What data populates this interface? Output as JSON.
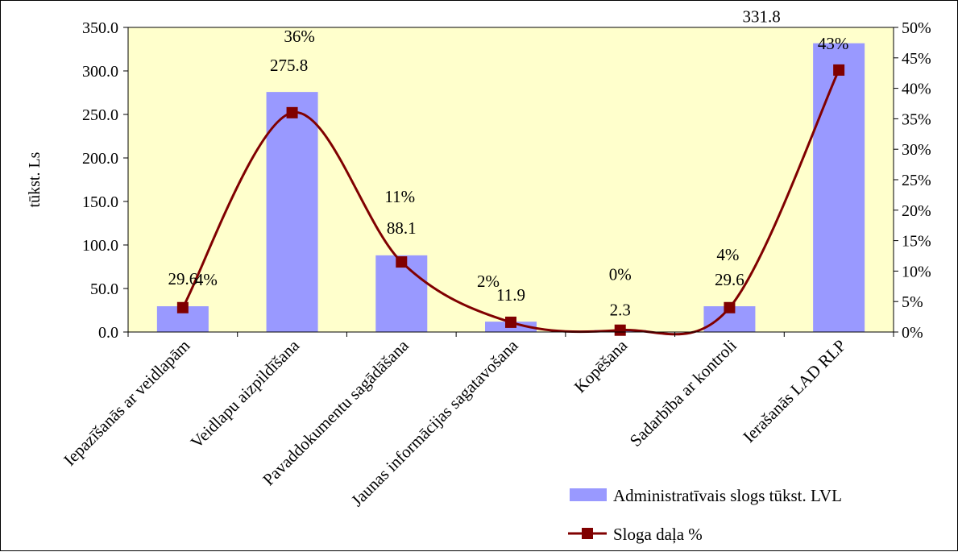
{
  "chart_data": {
    "type": "bar",
    "categories": [
      "Iepazīšanās ar veidlapām",
      "Veidlapu aizpildīšana",
      "Pavaddokumentu sagādāšana",
      "Jaunas informācijas sagatavošana",
      "Kopēšana",
      "Sadarbība ar kontroli",
      "Ierašanās LAD RLP"
    ],
    "series": [
      {
        "name": "Administratīvais slogs tūkst. LVL",
        "type": "bar",
        "axis": "left",
        "values": [
          29.6,
          275.8,
          88.1,
          11.9,
          2.3,
          29.6,
          331.8
        ],
        "labels": [
          "29.6",
          "275.8",
          "88.1",
          "11.9",
          "2.3",
          "29.6",
          "331.8"
        ],
        "color": "#9999ff"
      },
      {
        "name": "Sloga daļa %",
        "type": "line",
        "axis": "right",
        "values": [
          4,
          36,
          11.5,
          1.6,
          0.3,
          4,
          43
        ],
        "labels": [
          "4%",
          "36%",
          "11%",
          "2%",
          "0%",
          "4%",
          "43%"
        ],
        "color": "#800000"
      }
    ],
    "ylabel": "tūkst. Ls",
    "ylim": [
      0,
      350
    ],
    "y_ticks": [
      "0.0",
      "50.0",
      "100.0",
      "150.0",
      "200.0",
      "250.0",
      "300.0",
      "350.0"
    ],
    "y2lim": [
      0,
      50
    ],
    "y2_ticks": [
      "0%",
      "5%",
      "10%",
      "15%",
      "20%",
      "25%",
      "30%",
      "35%",
      "40%",
      "45%",
      "50%"
    ],
    "plot_background": "#ffffcc",
    "grid": false,
    "legend_position": "bottom-right"
  }
}
